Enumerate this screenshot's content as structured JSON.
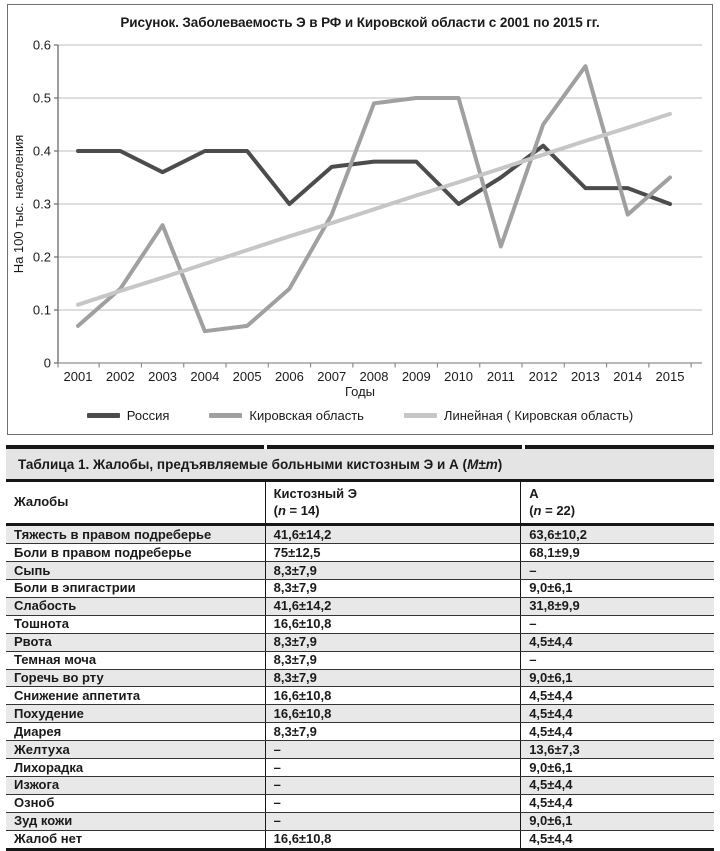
{
  "figure": {
    "title": "Рисунок. Заболеваемость Э  в РФ и Кировской области с 2001 по 2015 гг."
  },
  "chart_data": {
    "type": "line",
    "title": "Рисунок. Заболеваемость Э  в РФ и Кировской области с 2001 по 2015 гг.",
    "x": [
      2001,
      2002,
      2003,
      2004,
      2005,
      2006,
      2007,
      2008,
      2009,
      2010,
      2011,
      2012,
      2013,
      2014,
      2015
    ],
    "series": [
      {
        "name": "Россия",
        "color": "#4c4c4c",
        "values": [
          0.4,
          0.4,
          0.36,
          0.4,
          0.4,
          0.3,
          0.37,
          0.38,
          0.38,
          0.3,
          0.35,
          0.41,
          0.33,
          0.33,
          0.3
        ]
      },
      {
        "name": "Кировская область",
        "color": "#a0a0a0",
        "values": [
          0.07,
          0.14,
          0.26,
          0.06,
          0.07,
          0.14,
          0.28,
          0.49,
          0.5,
          0.5,
          0.22,
          0.45,
          0.56,
          0.28,
          0.35
        ]
      },
      {
        "name": "Линейная ( Кировская область)",
        "color": "#c6c6c6",
        "trendline": true,
        "values": [
          0.11,
          0.136,
          0.161,
          0.187,
          0.213,
          0.239,
          0.264,
          0.29,
          0.316,
          0.341,
          0.367,
          0.393,
          0.419,
          0.444,
          0.47
        ]
      }
    ],
    "xlabel": "Годы",
    "ylabel": "На 100 тыс. населения",
    "ylim": [
      0,
      0.6
    ],
    "yticks": [
      0,
      0.1,
      0.2,
      0.3,
      0.4,
      0.5,
      0.6
    ],
    "ytick_labels": [
      "0",
      "0.1",
      "0.2",
      "0.3",
      "0.4",
      "0.5",
      "0.6"
    ],
    "grid": true,
    "legend_position": "bottom",
    "colors": {
      "grid": "#c9c9c9",
      "axis": "#8e8e8e"
    }
  },
  "table": {
    "title_pre": "Таблица 1. Жалобы, предъявляемые больными кистозным Э и А (",
    "title_em": "M±m",
    "title_post": ")",
    "columns": [
      {
        "label": "Жалобы"
      },
      {
        "label": "Кистозный Э",
        "sub_pre": "(",
        "sub_em": "n",
        "sub_post": " = 14)"
      },
      {
        "label": "А",
        "sub_pre": "(",
        "sub_em": "n",
        "sub_post": " = 22)"
      }
    ],
    "rows": [
      {
        "label": "Тяжесть в правом подреберье",
        "v1": "41,6±14,2",
        "v2": "63,6±10,2"
      },
      {
        "label": "Боли в правом подреберье",
        "v1": "75±12,5",
        "v2": "68,1±9,9"
      },
      {
        "label": "Сыпь",
        "v1": "8,3±7,9",
        "v2": "–"
      },
      {
        "label": "Боли в эпигастрии",
        "v1": "8,3±7,9",
        "v2": "9,0±6,1"
      },
      {
        "label": "Слабость",
        "v1": "41,6±14,2",
        "v2": "31,8±9,9"
      },
      {
        "label": "Тошнота",
        "v1": "16,6±10,8",
        "v2": "–"
      },
      {
        "label": "Рвота",
        "v1": "8,3±7,9",
        "v2": "4,5±4,4"
      },
      {
        "label": "Темная моча",
        "v1": "8,3±7,9",
        "v2": "–"
      },
      {
        "label": "Горечь во рту",
        "v1": "8,3±7,9",
        "v2": "9,0±6,1"
      },
      {
        "label": "Снижение аппетита",
        "v1": "16,6±10,8",
        "v2": "4,5±4,4"
      },
      {
        "label": "Похудение",
        "v1": "16,6±10,8",
        "v2": "4,5±4,4"
      },
      {
        "label": "Диарея",
        "v1": "8,3±7,9",
        "v2": "4,5±4,4"
      },
      {
        "label": "Желтуха",
        "v1": "–",
        "v2": "13,6±7,3"
      },
      {
        "label": "Лихорадка",
        "v1": "–",
        "v2": "9,0±6,1"
      },
      {
        "label": "Изжога",
        "v1": "–",
        "v2": "4,5±4,4"
      },
      {
        "label": "Озноб",
        "v1": "–",
        "v2": "4,5±4,4"
      },
      {
        "label": "Зуд кожи",
        "v1": "–",
        "v2": "9,0±6,1"
      },
      {
        "label": "Жалоб нет",
        "v1": "16,6±10,8",
        "v2": "4,5±4,4"
      }
    ]
  }
}
